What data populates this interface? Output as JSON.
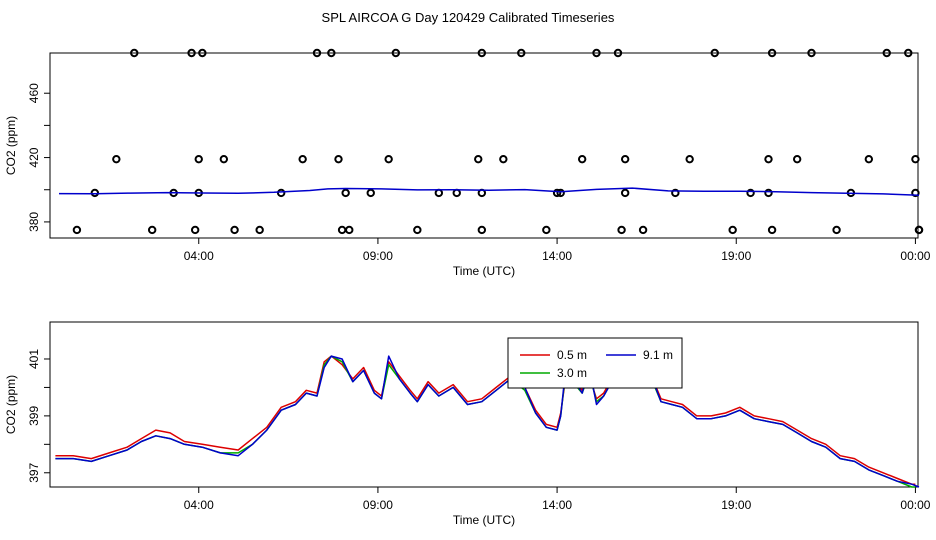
{
  "figure_title": "SPL AIRCOA G  Day 120429  Calibrated Timeseries",
  "chart_data": [
    {
      "type": "line",
      "panel": "top",
      "xlabel": "Time (UTC)",
      "ylabel": "CO2 (ppm)",
      "xlim": [
        0,
        24
      ],
      "ylim": [
        370,
        485
      ],
      "x_ticks": [
        {
          "value": 3.9,
          "label": "04:00"
        },
        {
          "value": 8.9,
          "label": "09:00"
        },
        {
          "value": 13.9,
          "label": "14:00"
        },
        {
          "value": 18.9,
          "label": "19:00"
        },
        {
          "value": 23.9,
          "label": "00:00"
        }
      ],
      "y_ticks": [
        {
          "value": 380,
          "label": "380"
        },
        {
          "value": 400,
          "label": ""
        },
        {
          "value": 420,
          "label": "420"
        },
        {
          "value": 440,
          "label": ""
        },
        {
          "value": 460,
          "label": "460"
        }
      ],
      "grid": false,
      "series_line": {
        "color": "#0000cc",
        "x": [
          0.0,
          1.0,
          2.0,
          3.0,
          4.0,
          5.0,
          6.0,
          7.0,
          7.5,
          8.0,
          9.0,
          10.0,
          11.0,
          12.0,
          13.0,
          14.0,
          15.0,
          16.0,
          17.0,
          18.0,
          19.0,
          20.0,
          21.0,
          22.0,
          23.0,
          24.0
        ],
        "y": [
          397.6,
          397.5,
          397.9,
          398.2,
          398.0,
          397.8,
          398.4,
          399.5,
          400.5,
          400.8,
          400.5,
          399.9,
          400.0,
          399.7,
          400.1,
          398.7,
          400.2,
          401.0,
          399.3,
          399.1,
          399.0,
          398.8,
          398.2,
          397.8,
          397.4,
          396.6
        ]
      },
      "raw_points": {
        "x": [
          0.5,
          1.0,
          1.6,
          2.1,
          2.6,
          3.2,
          3.7,
          3.8,
          3.9,
          3.9,
          4.0,
          4.6,
          4.9,
          5.6,
          6.2,
          6.8,
          7.2,
          7.6,
          7.8,
          7.9,
          8.0,
          8.1,
          8.7,
          9.2,
          9.4,
          10.0,
          10.6,
          11.1,
          11.7,
          11.8,
          11.8,
          11.8,
          12.4,
          12.9,
          13.6,
          13.9,
          14.0,
          14.6,
          15.0,
          15.6,
          15.7,
          15.8,
          15.8,
          16.3,
          17.2,
          17.6,
          18.3,
          18.8,
          19.3,
          19.8,
          19.8,
          19.9,
          19.9,
          20.6,
          21.0,
          21.7,
          22.1,
          22.6,
          23.1,
          23.7,
          23.9,
          23.9,
          24.0,
          24.0
        ],
        "y": [
          375,
          398,
          419,
          485,
          375,
          398,
          485,
          375,
          398,
          419,
          485,
          419,
          375,
          375,
          398,
          419,
          485,
          485,
          419,
          375,
          398,
          375,
          398,
          419,
          485,
          375,
          398,
          398,
          419,
          485,
          375,
          398,
          419,
          485,
          375,
          398,
          398,
          419,
          485,
          485,
          375,
          398,
          419,
          375,
          398,
          419,
          485,
          375,
          398,
          398,
          419,
          485,
          375,
          419,
          485,
          375,
          398,
          419,
          485,
          485,
          419,
          398,
          375,
          375
        ]
      }
    },
    {
      "type": "line",
      "panel": "bottom",
      "xlabel": "Time (UTC)",
      "ylabel": "CO2 (ppm)",
      "xlim": [
        0,
        24
      ],
      "ylim": [
        396.5,
        402.3
      ],
      "x_ticks": [
        {
          "value": 3.9,
          "label": "04:00"
        },
        {
          "value": 8.9,
          "label": "09:00"
        },
        {
          "value": 13.9,
          "label": "14:00"
        },
        {
          "value": 18.9,
          "label": "19:00"
        },
        {
          "value": 23.9,
          "label": "00:00"
        }
      ],
      "y_ticks": [
        {
          "value": 397,
          "label": "397"
        },
        {
          "value": 398,
          "label": ""
        },
        {
          "value": 399,
          "label": "399"
        },
        {
          "value": 400,
          "label": ""
        },
        {
          "value": 401,
          "label": "401"
        }
      ],
      "grid": false,
      "legend": {
        "placement": "top-center",
        "entries": [
          {
            "label": "0.5 m",
            "color": "#dd0000"
          },
          {
            "label": "9.1 m",
            "color": "#0000cc"
          },
          {
            "label": "3.0 m",
            "color": "#00aa00"
          }
        ]
      },
      "series": [
        {
          "name": "0.5 m",
          "color": "#dd0000",
          "x": [
            -0.1,
            0.4,
            0.9,
            1.4,
            1.9,
            2.3,
            2.7,
            3.1,
            3.5,
            4.0,
            4.5,
            5.0,
            5.4,
            5.8,
            6.2,
            6.6,
            6.9,
            7.2,
            7.4,
            7.6,
            7.9,
            8.2,
            8.5,
            8.8,
            9.0,
            9.2,
            9.5,
            9.8,
            10.0,
            10.3,
            10.6,
            11.0,
            11.4,
            11.8,
            12.2,
            12.6,
            13.0,
            13.3,
            13.6,
            13.9,
            14.0,
            14.1,
            14.2,
            14.4,
            14.6,
            14.8,
            15.0,
            15.2,
            15.6,
            15.9,
            16.2,
            16.5,
            16.8,
            17.1,
            17.4,
            17.8,
            18.2,
            18.6,
            19.0,
            19.4,
            19.8,
            20.2,
            20.6,
            21.0,
            21.4,
            21.8,
            22.2,
            22.6,
            23.0,
            23.4,
            23.8,
            23.9
          ],
          "y": [
            397.6,
            397.6,
            397.5,
            397.7,
            397.9,
            398.2,
            398.5,
            398.4,
            398.1,
            398.0,
            397.9,
            397.8,
            398.2,
            398.6,
            399.3,
            399.5,
            399.9,
            399.8,
            400.9,
            401.1,
            400.8,
            400.3,
            400.7,
            399.9,
            399.7,
            400.9,
            400.4,
            399.9,
            399.6,
            400.2,
            399.8,
            400.1,
            399.5,
            399.6,
            400.0,
            400.4,
            400.0,
            399.2,
            398.7,
            398.6,
            399.1,
            400.0,
            401.0,
            400.2,
            399.9,
            400.4,
            399.6,
            399.8,
            400.7,
            401.0,
            401.2,
            400.5,
            399.6,
            399.5,
            399.4,
            399.0,
            399.0,
            399.1,
            399.3,
            399.0,
            398.9,
            398.8,
            398.5,
            398.2,
            398.0,
            397.6,
            397.5,
            397.2,
            397.0,
            396.8,
            396.6,
            396.6
          ]
        },
        {
          "name": "3.0 m",
          "color": "#00aa00",
          "x": [
            -0.1,
            0.4,
            0.9,
            1.4,
            1.9,
            2.3,
            2.7,
            3.1,
            3.5,
            4.0,
            4.5,
            5.0,
            5.4,
            5.8,
            6.2,
            6.6,
            6.9,
            7.2,
            7.4,
            7.6,
            7.9,
            8.2,
            8.5,
            8.8,
            9.0,
            9.2,
            9.5,
            9.8,
            10.0,
            10.3,
            10.6,
            11.0,
            11.4,
            11.8,
            12.2,
            12.6,
            13.0,
            13.3,
            13.6,
            13.9,
            14.0,
            14.1,
            14.2,
            14.4,
            14.6,
            14.8,
            15.0,
            15.2,
            15.6,
            15.9,
            16.2,
            16.5,
            16.8,
            17.1,
            17.4,
            17.8,
            18.2,
            18.6,
            19.0,
            19.4,
            19.8,
            20.2,
            20.6,
            21.0,
            21.4,
            21.8,
            22.2,
            22.6,
            23.0,
            23.4,
            23.8,
            23.9
          ],
          "y": [
            397.5,
            397.5,
            397.4,
            397.6,
            397.8,
            398.1,
            398.3,
            398.2,
            398.0,
            397.9,
            397.7,
            397.7,
            398.0,
            398.5,
            399.2,
            399.4,
            399.8,
            399.7,
            400.8,
            401.1,
            400.9,
            400.2,
            400.6,
            399.8,
            399.6,
            400.8,
            400.3,
            399.8,
            399.5,
            400.1,
            399.7,
            400.0,
            399.4,
            399.5,
            399.9,
            400.3,
            399.9,
            399.1,
            398.6,
            398.5,
            399.0,
            400.1,
            401.3,
            400.1,
            399.8,
            400.5,
            399.5,
            399.7,
            400.6,
            401.1,
            401.4,
            400.4,
            399.5,
            399.4,
            399.3,
            398.9,
            398.9,
            399.0,
            399.2,
            398.9,
            398.8,
            398.7,
            398.4,
            398.1,
            397.9,
            397.5,
            397.4,
            397.1,
            396.9,
            396.7,
            396.5,
            396.5
          ]
        },
        {
          "name": "9.1 m",
          "color": "#0000cc",
          "x": [
            -0.1,
            0.4,
            0.9,
            1.4,
            1.9,
            2.3,
            2.7,
            3.1,
            3.5,
            4.0,
            4.5,
            5.0,
            5.4,
            5.8,
            6.2,
            6.6,
            6.9,
            7.2,
            7.4,
            7.6,
            7.9,
            8.2,
            8.5,
            8.8,
            9.0,
            9.2,
            9.5,
            9.8,
            10.0,
            10.3,
            10.6,
            11.0,
            11.4,
            11.8,
            12.2,
            12.6,
            13.0,
            13.3,
            13.6,
            13.9,
            14.0,
            14.1,
            14.2,
            14.4,
            14.6,
            14.8,
            15.0,
            15.2,
            15.6,
            15.9,
            16.2,
            16.5,
            16.8,
            17.1,
            17.4,
            17.8,
            18.2,
            18.6,
            19.0,
            19.4,
            19.8,
            20.2,
            20.6,
            21.0,
            21.4,
            21.8,
            22.2,
            22.6,
            23.0,
            23.4,
            23.8,
            24.0
          ],
          "y": [
            397.5,
            397.5,
            397.4,
            397.6,
            397.8,
            398.1,
            398.3,
            398.2,
            398.0,
            397.9,
            397.7,
            397.6,
            398.0,
            398.5,
            399.2,
            399.4,
            399.8,
            399.7,
            400.7,
            401.1,
            401.0,
            400.2,
            400.6,
            399.8,
            399.6,
            401.1,
            400.3,
            399.8,
            399.5,
            400.1,
            399.7,
            400.0,
            399.4,
            399.5,
            399.9,
            400.3,
            400.0,
            399.1,
            398.6,
            398.5,
            399.0,
            400.2,
            401.2,
            400.2,
            399.8,
            400.7,
            399.4,
            399.7,
            400.6,
            401.2,
            401.7,
            400.5,
            399.5,
            399.4,
            399.3,
            398.9,
            398.9,
            399.0,
            399.2,
            398.9,
            398.8,
            398.7,
            398.4,
            398.1,
            397.9,
            397.5,
            397.4,
            397.1,
            396.9,
            396.7,
            396.6,
            396.5
          ]
        }
      ]
    }
  ]
}
